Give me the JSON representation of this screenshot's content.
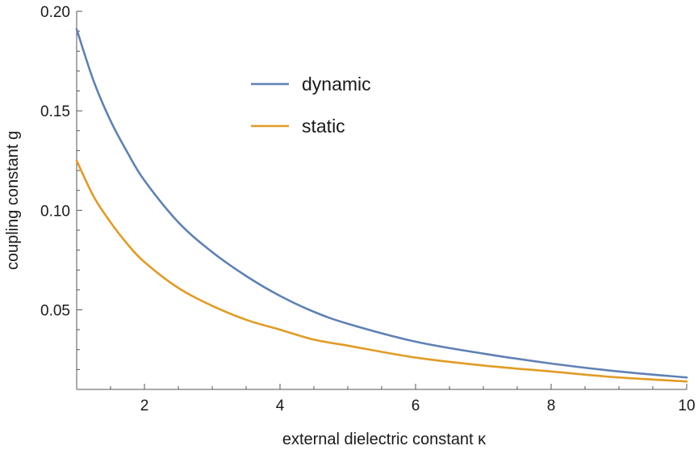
{
  "chart_data": {
    "type": "line",
    "xlabel": "external dielectric constant κ",
    "ylabel": "coupling constant g",
    "xlim": [
      1,
      10
    ],
    "ylim": [
      0.01,
      0.2
    ],
    "x_ticks": [
      2,
      4,
      6,
      8,
      10
    ],
    "x_tick_labels": [
      "2",
      "4",
      "6",
      "8",
      "10"
    ],
    "y_ticks": [
      0.05,
      0.1,
      0.15,
      0.2
    ],
    "y_tick_labels": [
      "0.05",
      "0.10",
      "0.15",
      "0.20"
    ],
    "grid": false,
    "legend_position": "top-center",
    "legend": [
      "dynamic",
      "static"
    ],
    "x": [
      1,
      1.25,
      1.5,
      1.75,
      2,
      2.5,
      3,
      3.5,
      4,
      4.5,
      5,
      6,
      7,
      8,
      9,
      10
    ],
    "series": [
      {
        "name": "dynamic",
        "color": "#5e81b5",
        "values": [
          0.191,
          0.165,
          0.145,
          0.129,
          0.115,
          0.094,
          0.079,
          0.067,
          0.057,
          0.049,
          0.043,
          0.034,
          0.028,
          0.023,
          0.019,
          0.016
        ]
      },
      {
        "name": "static",
        "color": "#e19c24",
        "values": [
          0.125,
          0.107,
          0.094,
          0.083,
          0.074,
          0.061,
          0.052,
          0.045,
          0.04,
          0.035,
          0.032,
          0.026,
          0.022,
          0.019,
          0.016,
          0.014
        ]
      }
    ]
  }
}
